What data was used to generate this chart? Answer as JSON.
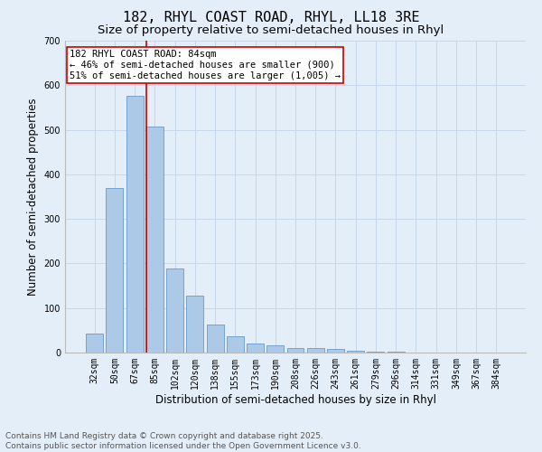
{
  "title": "182, RHYL COAST ROAD, RHYL, LL18 3RE",
  "subtitle": "Size of property relative to semi-detached houses in Rhyl",
  "xlabel": "Distribution of semi-detached houses by size in Rhyl",
  "ylabel": "Number of semi-detached properties",
  "categories": [
    "32sqm",
    "50sqm",
    "67sqm",
    "85sqm",
    "102sqm",
    "120sqm",
    "138sqm",
    "155sqm",
    "173sqm",
    "190sqm",
    "208sqm",
    "226sqm",
    "243sqm",
    "261sqm",
    "279sqm",
    "296sqm",
    "314sqm",
    "331sqm",
    "349sqm",
    "367sqm",
    "384sqm"
  ],
  "values": [
    43,
    370,
    577,
    507,
    188,
    127,
    62,
    37,
    20,
    16,
    11,
    10,
    8,
    5,
    3,
    2,
    0,
    1,
    0,
    0,
    1
  ],
  "bar_color": "#adc9e8",
  "bar_edge_color": "#6699cc",
  "grid_color": "#c8d8ea",
  "background_color": "#e4eef8",
  "vline_x_index": 3,
  "vline_color": "#cc0000",
  "annotation_text": "182 RHYL COAST ROAD: 84sqm\n← 46% of semi-detached houses are smaller (900)\n51% of semi-detached houses are larger (1,005) →",
  "annotation_box_color": "#ffffff",
  "annotation_box_edge": "#cc0000",
  "ylim": [
    0,
    700
  ],
  "yticks": [
    0,
    100,
    200,
    300,
    400,
    500,
    600,
    700
  ],
  "footnote": "Contains HM Land Registry data © Crown copyright and database right 2025.\nContains public sector information licensed under the Open Government Licence v3.0.",
  "title_fontsize": 11,
  "subtitle_fontsize": 9.5,
  "axis_label_fontsize": 8.5,
  "tick_fontsize": 7,
  "annotation_fontsize": 7.5,
  "footnote_fontsize": 6.5
}
